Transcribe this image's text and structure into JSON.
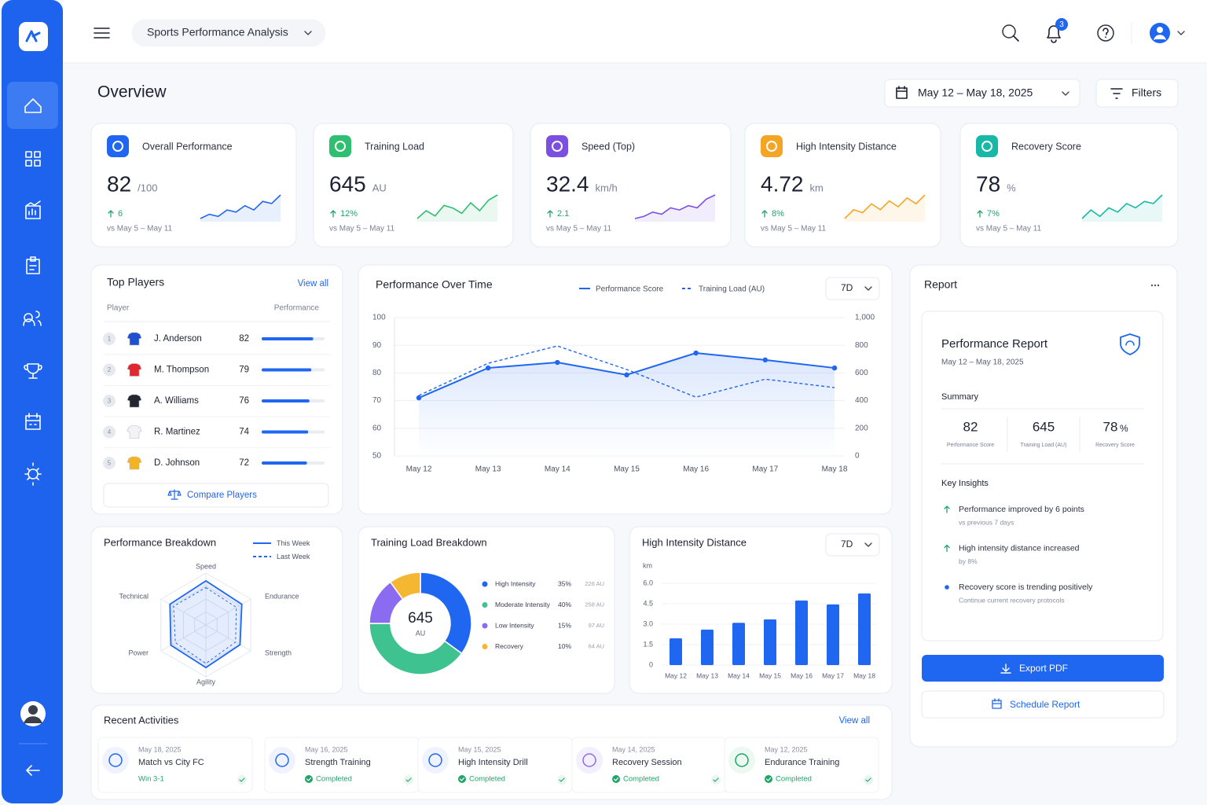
{
  "header": {
    "app_title": "Sports Performance Analysis",
    "notifications": 3
  },
  "overview": {
    "title": "Overview",
    "date_range": "May 12 – May 18, 2025",
    "filters": "Filters"
  },
  "kpis": [
    {
      "title": "Overall Performance",
      "value": 82,
      "unit": "/100",
      "change": 6,
      "compare": "vs May 5 – May 11",
      "color": "#1f66f0",
      "trend": [
        3,
        5,
        4,
        7,
        6,
        9,
        7,
        11,
        10,
        14
      ]
    },
    {
      "title": "Training Load",
      "value": 645,
      "unit": "AU",
      "change": "12%",
      "compare": "vs May 5 – May 11",
      "color": "#2fbf71",
      "trend": [
        4,
        7,
        5,
        9,
        8,
        6,
        10,
        7,
        11,
        13
      ]
    },
    {
      "title": "Speed (Top)",
      "value": 32.4,
      "unit": "km/h",
      "change": 2.1,
      "compare": "vs May 5 – May 11",
      "color": "#7b4fe0",
      "trend": [
        3,
        4,
        6,
        5,
        8,
        7,
        9,
        8,
        12,
        14
      ]
    },
    {
      "title": "High Intensity Distance",
      "value": 4.72,
      "unit": "km",
      "change": "8%",
      "compare": "vs May 5 – May 11",
      "color": "#f5a524",
      "trend": [
        3,
        6,
        5,
        8,
        6,
        9,
        7,
        10,
        8,
        11
      ]
    },
    {
      "title": "Recovery Score",
      "value": 78,
      "unit": "%",
      "change": "7%",
      "compare": "vs May 5 – May 11",
      "color": "#17b8a6",
      "trend": [
        2,
        6,
        3,
        7,
        5,
        9,
        7,
        10,
        9,
        13
      ]
    }
  ],
  "top_players": {
    "title": "Top Players",
    "view_all": "View all",
    "col_player": "Player",
    "col_performance": "Performance",
    "bar_range": [
      0,
      100
    ],
    "players": [
      {
        "rank": 1,
        "name": "J. Anderson",
        "score": 82,
        "shirt": "#1f4fd1"
      },
      {
        "rank": 2,
        "name": "M. Thompson",
        "score": 79,
        "shirt": "#e0282e"
      },
      {
        "rank": 3,
        "name": "A. Williams",
        "score": 76,
        "shirt": "#23262d"
      },
      {
        "rank": 4,
        "name": "R. Martinez",
        "score": 74,
        "shirt": "#f2f3f5"
      },
      {
        "rank": 5,
        "name": "D. Johnson",
        "score": 72,
        "shirt": "#f5b324"
      }
    ],
    "compare": "Compare Players"
  },
  "performance_over_time": {
    "type": "line",
    "title": "Performance Over Time",
    "period": "7D",
    "categories": [
      "May 12",
      "May 13",
      "May 14",
      "May 15",
      "May 16",
      "May 17",
      "May 18"
    ],
    "series": [
      {
        "name": "Performance Score",
        "color": "#1f66f0",
        "values": [
          71,
          81.8,
          83.8,
          79.3,
          87.2,
          84.7,
          81.8
        ]
      },
      {
        "name": "Training Load (AU)",
        "color": "#1f66f0",
        "dashed": true,
        "axis": "y2",
        "values": [
          437,
          670,
          795,
          625,
          425,
          555,
          494
        ]
      }
    ],
    "ylim": [
      50,
      100
    ],
    "yticks": [
      50,
      60,
      70,
      80,
      90,
      100
    ],
    "y2lim": [
      0,
      1000
    ],
    "y2ticks": [
      0,
      200,
      400,
      600,
      800,
      {
        "value": 1000,
        "label": "1,000"
      }
    ],
    "grid": true
  },
  "breakdown": {
    "type": "radar",
    "title": "Performance Breakdown",
    "axes": [
      "Speed",
      "Endurance",
      "Strength",
      "Agility",
      "Power",
      "Technical"
    ],
    "rlim": [
      0,
      100
    ],
    "series": [
      {
        "name": "This Week",
        "color": "#1f66f0",
        "values": [
          85,
          80,
          76,
          82,
          78,
          80
        ]
      },
      {
        "name": "Last Week",
        "color": "#1f66f0",
        "dashed": true,
        "values": [
          72,
          68,
          66,
          74,
          68,
          72
        ]
      }
    ]
  },
  "training_load": {
    "type": "donut",
    "title": "Training Load Breakdown",
    "total": 645,
    "total_unit": "AU",
    "categories": [
      "High Intensity",
      "Moderate Intensity",
      "Low Intensity",
      "Recovery"
    ],
    "values": [
      35,
      40,
      15,
      10
    ],
    "value_labels": [
      "35%",
      "40%",
      "15%",
      "10%"
    ],
    "loads": [
      226,
      258,
      97,
      64
    ],
    "load_labels": [
      "226 AU",
      "258 AU",
      "97 AU",
      "64 AU"
    ],
    "colors": [
      "#1f66f0",
      "#3ec28f",
      "#8b6cf0",
      "#f5b731"
    ]
  },
  "high_intensity": {
    "type": "bar",
    "title": "High Intensity Distance",
    "period": "7D",
    "ylabel": "km",
    "categories": [
      "May 12",
      "May 13",
      "May 14",
      "May 15",
      "May 16",
      "May 17",
      "May 18"
    ],
    "values": [
      1.96,
      2.6,
      3.1,
      3.35,
      4.74,
      4.45,
      5.26
    ],
    "color": "#1f66f0",
    "ylim": [
      0,
      6
    ],
    "yticks": [
      0,
      1.5,
      {
        "value": 3,
        "label": "3.0"
      },
      4.5,
      {
        "value": 6,
        "label": "6.0"
      }
    ],
    "grid": true
  },
  "report": {
    "title": "Report",
    "card_title": "Performance Report",
    "date": "May 12 – May 18, 2025",
    "summary_title": "Summary",
    "summary": [
      {
        "value": 82,
        "label": "Performance Score"
      },
      {
        "value": 645,
        "label": "Training Load (AU)"
      },
      {
        "value": 78,
        "unit": "%",
        "label": "Recovery Score"
      }
    ],
    "insights_title": "Key Insights",
    "insights": [
      {
        "text": "Performance improved by 6 points",
        "sub": "vs previous 7 days"
      },
      {
        "text": "High intensity distance increased",
        "sub": "by 8%"
      },
      {
        "text": "Recovery score is trending positively",
        "sub": "Continue current recovery protocols"
      }
    ],
    "export": "Export PDF",
    "schedule": "Schedule Report"
  },
  "activities": {
    "title": "Recent Activities",
    "view_all": "View all",
    "items": [
      {
        "date": "May 18, 2025",
        "title": "Match vs City FC",
        "status": "Win 3-1"
      },
      {
        "date": "May 16, 2025",
        "title": "Strength Training",
        "status": "Completed"
      },
      {
        "date": "May 15, 2025",
        "title": "High Intensity Drill",
        "status": "Completed"
      },
      {
        "date": "May 14, 2025",
        "title": "Recovery Session",
        "status": "Completed"
      },
      {
        "date": "May 12, 2025",
        "title": "Endurance Training",
        "status": "Completed"
      }
    ]
  }
}
